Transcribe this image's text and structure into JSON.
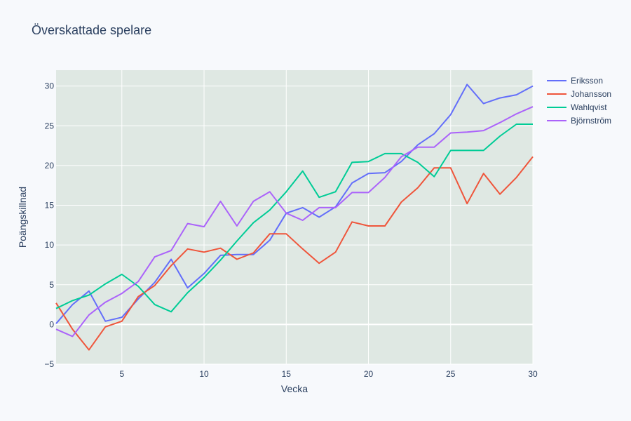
{
  "chart_data": {
    "type": "line",
    "title": "Överskattade spelare",
    "xlabel": "Vecka",
    "ylabel": "Poängskillnad",
    "xlim": [
      1,
      30
    ],
    "ylim": [
      -5,
      32
    ],
    "xticks": [
      5,
      10,
      15,
      20,
      25,
      30
    ],
    "yticks": [
      -5,
      0,
      5,
      10,
      15,
      20,
      25,
      30
    ],
    "grid": true,
    "legend_position": "top-right",
    "plot_background": "#dfe8e3",
    "x": [
      1,
      2,
      3,
      4,
      5,
      6,
      7,
      8,
      9,
      10,
      11,
      12,
      13,
      14,
      15,
      16,
      17,
      18,
      19,
      20,
      21,
      22,
      23,
      24,
      25,
      26,
      27,
      28,
      29,
      30
    ],
    "series": [
      {
        "name": "Eriksson",
        "color": "#636efa",
        "values": [
          0.1,
          2.5,
          4.2,
          0.4,
          0.9,
          3.2,
          5.3,
          8.2,
          4.6,
          6.4,
          8.7,
          8.8,
          8.8,
          10.6,
          14.0,
          14.7,
          13.5,
          14.8,
          17.8,
          19.0,
          19.1,
          20.5,
          22.6,
          24.0,
          26.4,
          30.2,
          27.8,
          28.5,
          28.9,
          30.0
        ]
      },
      {
        "name": "Johansson",
        "color": "#ef553b",
        "values": [
          2.7,
          -0.6,
          -3.2,
          -0.3,
          0.4,
          3.5,
          4.9,
          7.4,
          9.5,
          9.1,
          9.6,
          8.2,
          9.0,
          11.4,
          11.4,
          9.5,
          7.7,
          9.1,
          12.9,
          12.4,
          12.4,
          15.4,
          17.2,
          19.7,
          19.7,
          15.2,
          19.0,
          16.4,
          18.5,
          21.1
        ]
      },
      {
        "name": "Wahlqvist",
        "color": "#00cc96",
        "values": [
          2.0,
          3.0,
          3.7,
          5.1,
          6.3,
          4.8,
          2.5,
          1.6,
          4.0,
          5.9,
          8.1,
          10.5,
          12.8,
          14.4,
          16.7,
          19.3,
          16.0,
          16.7,
          20.4,
          20.5,
          21.5,
          21.5,
          20.4,
          18.6,
          21.9,
          21.9,
          21.9,
          23.7,
          25.2,
          25.2
        ]
      },
      {
        "name": "Björnström",
        "color": "#ab63fa",
        "values": [
          -0.6,
          -1.5,
          1.2,
          2.8,
          3.9,
          5.4,
          8.5,
          9.3,
          12.7,
          12.3,
          15.5,
          12.4,
          15.5,
          16.7,
          14.0,
          13.1,
          14.7,
          14.7,
          16.6,
          16.6,
          18.5,
          21.1,
          22.3,
          22.3,
          24.1,
          24.2,
          24.4,
          25.4,
          26.5,
          27.4
        ]
      }
    ]
  }
}
